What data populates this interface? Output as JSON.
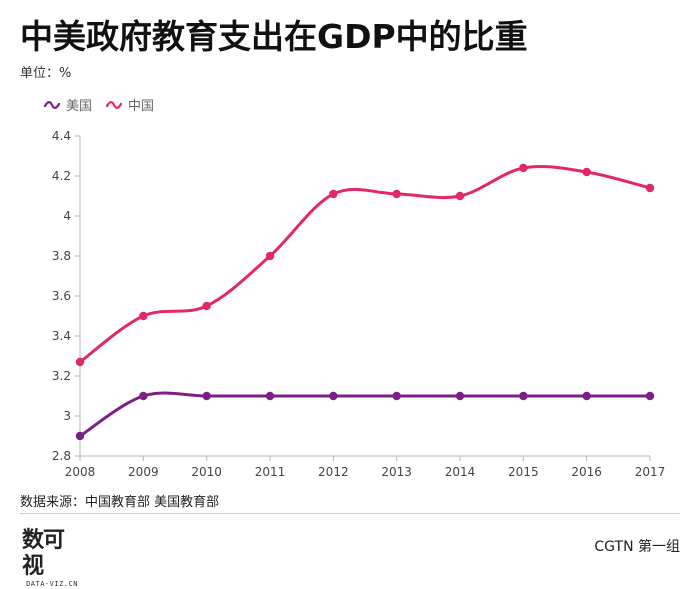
{
  "header": {
    "title": "中美政府教育支出在GDP中的比重",
    "unit": "单位：%"
  },
  "colors": {
    "us": "#7b1f87",
    "china": "#e0286a"
  },
  "chart_data": {
    "type": "line",
    "x": [
      2008,
      2009,
      2010,
      2011,
      2012,
      2013,
      2014,
      2015,
      2016,
      2017
    ],
    "series": [
      {
        "name": "美国",
        "values": [
          2.9,
          3.1,
          3.1,
          3.1,
          3.1,
          3.1,
          3.1,
          3.1,
          3.1,
          3.1
        ]
      },
      {
        "name": "中国",
        "values": [
          3.27,
          3.5,
          3.55,
          3.8,
          4.11,
          4.11,
          4.1,
          4.24,
          4.22,
          4.14
        ]
      }
    ],
    "ylim": [
      2.8,
      4.4
    ],
    "yticks": [
      2.8,
      3,
      3.2,
      3.4,
      3.6,
      3.8,
      4,
      4.2,
      4.4
    ],
    "grid": false,
    "legend_position": "top-left",
    "smooth": true
  },
  "footer": {
    "source": "数据来源：中国教育部 美国教育部",
    "logo_text": "数可视",
    "logo_sub": "DATA-VIZ.CN",
    "brand": "CGTN 第一组"
  }
}
